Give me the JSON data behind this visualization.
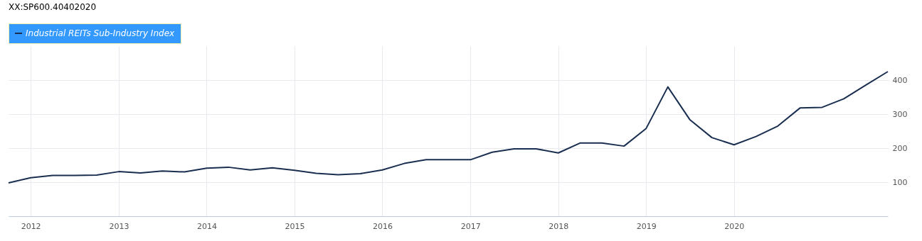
{
  "chart_data": {
    "type": "line",
    "title": "XX:SP600.40402020",
    "x": [
      "2011-10",
      "2012-01",
      "2012-04",
      "2012-07",
      "2012-10",
      "2013-01",
      "2013-04",
      "2013-07",
      "2013-10",
      "2014-01",
      "2014-04",
      "2014-07",
      "2014-10",
      "2015-01",
      "2015-04",
      "2015-07",
      "2015-10",
      "2016-01",
      "2016-04",
      "2016-07",
      "2016-10",
      "2017-01",
      "2017-04",
      "2017-07",
      "2017-10",
      "2018-01",
      "2018-04",
      "2018-07",
      "2018-10",
      "2019-01",
      "2019-04",
      "2019-07",
      "2019-10",
      "2020-01",
      "2020-04",
      "2020-07",
      "2020-10",
      "2021-01",
      "2021-04",
      "2021-07",
      "2021-10"
    ],
    "series": [
      {
        "name": "Industrial REITs Sub-Industry Index",
        "color": "#1a2e4f",
        "values": [
          98,
          113,
          120,
          120,
          121,
          131,
          127,
          133,
          130,
          141,
          144,
          136,
          142,
          135,
          126,
          122,
          125,
          136,
          155,
          166,
          166,
          166,
          188,
          198,
          198,
          186,
          215,
          215,
          206,
          258,
          380,
          284,
          231,
          210,
          234,
          265,
          318,
          320,
          345,
          385,
          425
        ]
      }
    ],
    "xlim": [
      "2011-10",
      "2021-10"
    ],
    "xticks": [
      "2012",
      "2013",
      "2014",
      "2015",
      "2016",
      "2017",
      "2018",
      "2019",
      "2020"
    ],
    "ylim": [
      0,
      500
    ],
    "yticks": [
      100,
      200,
      300,
      400
    ],
    "grid": true,
    "legend": "top left",
    "marker": "none",
    "line_style": "solid"
  }
}
